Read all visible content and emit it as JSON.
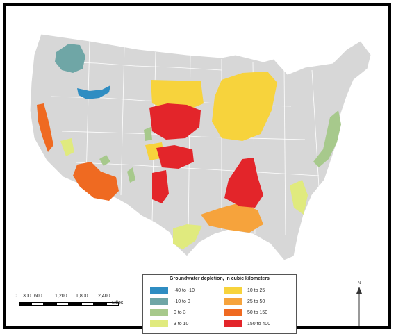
{
  "legend": {
    "title": "Groundwater depletion, in cubic kilometers",
    "items": [
      {
        "label": "-40 to -10",
        "color": "#2f8dc2"
      },
      {
        "label": "-10 to 0",
        "color": "#6fa6a6"
      },
      {
        "label": "0 to 3",
        "color": "#a7c98c"
      },
      {
        "label": "3 to 10",
        "color": "#e0ea7e"
      },
      {
        "label": "10 to 25",
        "color": "#f7d33c"
      },
      {
        "label": "25 to 50",
        "color": "#f6a33c"
      },
      {
        "label": "50 to 150",
        "color": "#ef6a21"
      },
      {
        "label": "150 to 400",
        "color": "#e3252a"
      }
    ]
  },
  "scale": {
    "ticks": [
      "0",
      "300",
      "600",
      "1,200",
      "1,800",
      "2,400"
    ],
    "unit": "Miles"
  },
  "north_label": "N",
  "colors": {
    "land": "#d7d7d7",
    "border": "#ffffff",
    "frame": "#000000"
  }
}
